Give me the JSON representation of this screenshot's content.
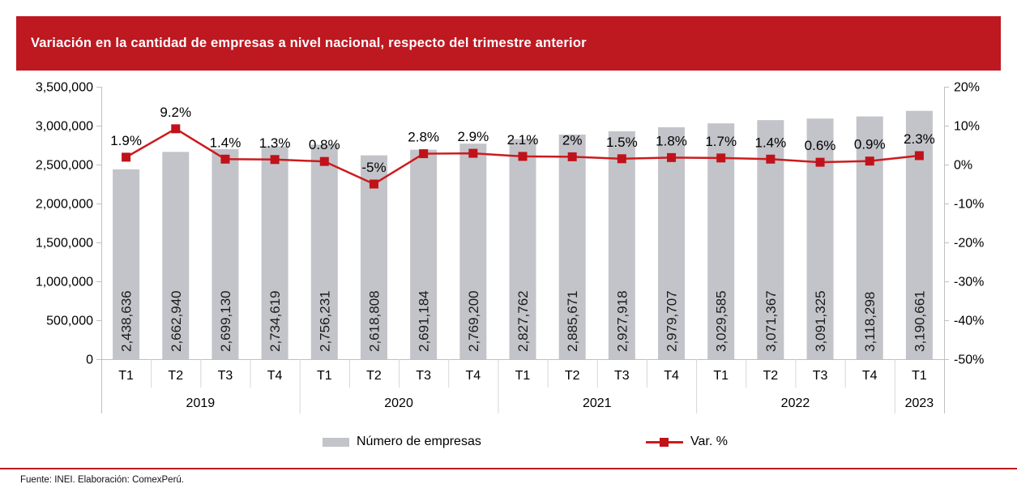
{
  "header": {
    "title": "Variación en la cantidad de empresas a nivel nacional, respecto del trimestre anterior"
  },
  "chart_data": {
    "type": "bar",
    "subtype": "combo-bar-line-dual-axis",
    "categories": [
      "T1",
      "T2",
      "T3",
      "T4",
      "T1",
      "T2",
      "T3",
      "T4",
      "T1",
      "T2",
      "T3",
      "T4",
      "T1",
      "T2",
      "T3",
      "T4",
      "T1"
    ],
    "year_groups": [
      {
        "label": "2019",
        "span": 4
      },
      {
        "label": "2020",
        "span": 4
      },
      {
        "label": "2021",
        "span": 4
      },
      {
        "label": "2022",
        "span": 4
      },
      {
        "label": "2023",
        "span": 1
      }
    ],
    "series": [
      {
        "name": "Número de empresas",
        "type": "bar",
        "axis": "left",
        "values": [
          2438636,
          2662940,
          2699130,
          2734619,
          2756231,
          2618808,
          2691184,
          2769200,
          2827762,
          2885671,
          2927918,
          2979707,
          3029585,
          3071367,
          3091325,
          3118298,
          3190661
        ],
        "labels": [
          "2,438,636",
          "2,662,940",
          "2,699,130",
          "2,734,619",
          "2,756,231",
          "2,618,808",
          "2,691,184",
          "2,769,200",
          "2,827,762",
          "2,885,671",
          "2,927,918",
          "2,979,707",
          "3,029,585",
          "3,071,367",
          "3,091,325",
          "3,118,298",
          "3,190,661"
        ]
      },
      {
        "name": "Var. %",
        "type": "line",
        "axis": "right",
        "values": [
          1.9,
          9.2,
          1.4,
          1.3,
          0.8,
          -5,
          2.8,
          2.9,
          2.1,
          2,
          1.5,
          1.8,
          1.7,
          1.4,
          0.6,
          0.9,
          2.3
        ],
        "labels": [
          "1.9%",
          "9.2%",
          "1.4%",
          "1.3%",
          "0.8%",
          "-5%",
          "2.8%",
          "2.9%",
          "2.1%",
          "2%",
          "1.5%",
          "1.8%",
          "1.7%",
          "1.4%",
          "0.6%",
          "0.9%",
          "2.3%"
        ]
      }
    ],
    "left_axis": {
      "min": 0,
      "max": 3500000,
      "step": 500000,
      "tick_labels": [
        "3,500,000",
        "3,000,000",
        "2,500,000",
        "2,000,000",
        "1,500,000",
        "1,000,000",
        "500,000",
        "0"
      ]
    },
    "right_axis": {
      "min": -50,
      "max": 20,
      "step": 10,
      "tick_labels": [
        "20%",
        "10%",
        "0%",
        "-10%",
        "-20%",
        "-30%",
        "-40%",
        "-50%"
      ]
    },
    "grid": false,
    "legend_position": "bottom",
    "title": "Variación en la cantidad de empresas a nivel nacional, respecto del trimestre anterior",
    "xlabel": "",
    "ylabel": ""
  },
  "footer": {
    "source": "Fuente: INEI. Elaboración: ComexPerú."
  },
  "colors": {
    "header_bg": "#BE1821",
    "bar": "#C3C4C9",
    "line": "#CC1B1E",
    "marker": "#C0121A",
    "axis": "#C0C0C0",
    "separator": "#D6D6D6",
    "rule": "#BE1821",
    "text": "#000000"
  }
}
